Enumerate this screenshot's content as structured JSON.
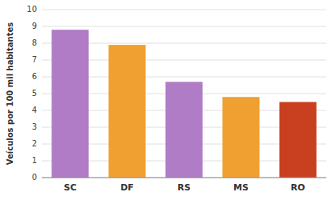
{
  "chart_data": {
    "type": "bar",
    "categories": [
      "SC",
      "DF",
      "RS",
      "MS",
      "RO"
    ],
    "values": [
      8.8,
      7.9,
      5.7,
      4.8,
      4.5
    ],
    "colors": [
      "#b07cc6",
      "#f0a030",
      "#b07cc6",
      "#f0a030",
      "#c84020"
    ],
    "ylabel": "Veículos por 100 mil habitantes",
    "ylim": [
      0,
      10
    ],
    "yticks": [
      0,
      1,
      2,
      3,
      4,
      5,
      6,
      7,
      8,
      9,
      10
    ],
    "grid": true
  }
}
